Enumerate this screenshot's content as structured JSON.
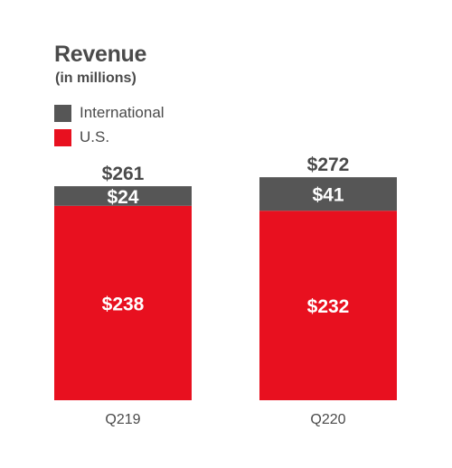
{
  "chart_data": {
    "type": "bar",
    "stacked": true,
    "title": "Revenue",
    "subtitle": "(in millions)",
    "categories": [
      "Q219",
      "Q220"
    ],
    "series": [
      {
        "name": "U.S.",
        "values": [
          238,
          232
        ],
        "labels": [
          "$238",
          "$232"
        ],
        "color": "#e8101f"
      },
      {
        "name": "International",
        "values": [
          24,
          41
        ],
        "labels": [
          "$24",
          "$41"
        ],
        "color": "#565656"
      }
    ],
    "totals": [
      261,
      272
    ],
    "total_labels": [
      "$261",
      "$272"
    ],
    "legend": [
      {
        "label": "International",
        "color": "#565656"
      },
      {
        "label": "U.S.",
        "color": "#e8101f"
      }
    ],
    "legend_position": "top-left",
    "grid": false,
    "xlabel": "",
    "ylabel": ""
  }
}
